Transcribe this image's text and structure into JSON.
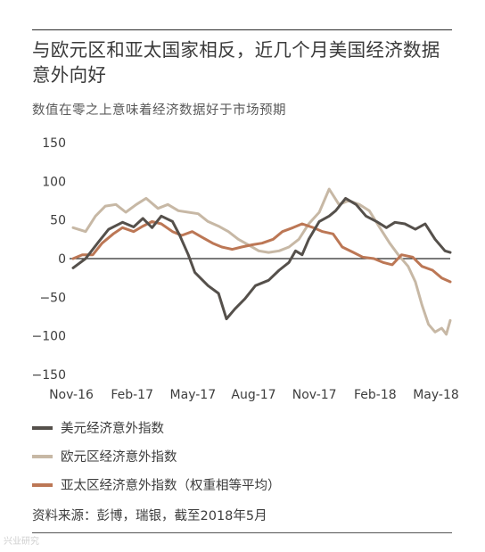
{
  "title": "与欧元区和亚太国家相反，近几个月美国经济数据意外向好",
  "subtitle": "数值在零之上意味着经济数据好于市场预期",
  "source": "资料来源：彭博，瑞银，截至2018年5月",
  "watermark": "兴业研究",
  "colors": {
    "us": "#55504b",
    "eu": "#c7b8a5",
    "apac": "#bc7755",
    "axis": "#2b2b2b"
  },
  "legend": [
    {
      "label": "美元经济意外指数",
      "color": "#55504b"
    },
    {
      "label": "欧元区经济意外指数",
      "color": "#c7b8a5"
    },
    {
      "label": "亚太区经济意外指数（权重相等平均）",
      "color": "#bc7755"
    }
  ],
  "chart_data": {
    "type": "line",
    "title": "",
    "xlabel": "",
    "ylabel": "",
    "x_ticks": [
      "Nov-16",
      "Feb-17",
      "May-17",
      "Aug-17",
      "Nov-17",
      "Feb-18",
      "May-18"
    ],
    "y_ticks": [
      150,
      100,
      50,
      0,
      -50,
      -100,
      -150
    ],
    "ylim": [
      -150,
      150
    ],
    "x_range": [
      "2016-11",
      "2018-05"
    ],
    "grid": false,
    "legend_position": "bottom",
    "series": [
      {
        "name": "美元经济意外指数",
        "points": [
          [
            "2016-11-01",
            -12
          ],
          [
            "2016-11-20",
            0
          ],
          [
            "2016-12-10",
            22
          ],
          [
            "2016-12-25",
            38
          ],
          [
            "2017-01-15",
            47
          ],
          [
            "2017-02-01",
            41
          ],
          [
            "2017-02-15",
            52
          ],
          [
            "2017-03-01",
            40
          ],
          [
            "2017-03-15",
            55
          ],
          [
            "2017-04-01",
            48
          ],
          [
            "2017-04-12",
            30
          ],
          [
            "2017-04-25",
            5
          ],
          [
            "2017-05-05",
            -18
          ],
          [
            "2017-05-25",
            -35
          ],
          [
            "2017-06-10",
            -45
          ],
          [
            "2017-06-22",
            -78
          ],
          [
            "2017-07-05",
            -65
          ],
          [
            "2017-07-20",
            -52
          ],
          [
            "2017-08-05",
            -35
          ],
          [
            "2017-08-25",
            -28
          ],
          [
            "2017-09-10",
            -15
          ],
          [
            "2017-09-25",
            -5
          ],
          [
            "2017-10-05",
            10
          ],
          [
            "2017-10-15",
            5
          ],
          [
            "2017-10-25",
            25
          ],
          [
            "2017-11-10",
            48
          ],
          [
            "2017-11-25",
            55
          ],
          [
            "2017-12-05",
            62
          ],
          [
            "2017-12-20",
            78
          ],
          [
            "2018-01-05",
            70
          ],
          [
            "2018-01-20",
            55
          ],
          [
            "2018-02-05",
            48
          ],
          [
            "2018-02-20",
            40
          ],
          [
            "2018-03-05",
            47
          ],
          [
            "2018-03-20",
            45
          ],
          [
            "2018-04-05",
            38
          ],
          [
            "2018-04-20",
            45
          ],
          [
            "2018-05-05",
            25
          ],
          [
            "2018-05-20",
            10
          ],
          [
            "2018-05-28",
            8
          ]
        ]
      },
      {
        "name": "欧元区经济意外指数",
        "points": [
          [
            "2016-11-01",
            40
          ],
          [
            "2016-11-20",
            35
          ],
          [
            "2016-12-05",
            55
          ],
          [
            "2016-12-20",
            68
          ],
          [
            "2017-01-05",
            70
          ],
          [
            "2017-01-20",
            60
          ],
          [
            "2017-02-05",
            70
          ],
          [
            "2017-02-20",
            78
          ],
          [
            "2017-03-10",
            65
          ],
          [
            "2017-03-25",
            70
          ],
          [
            "2017-04-10",
            62
          ],
          [
            "2017-04-25",
            60
          ],
          [
            "2017-05-10",
            58
          ],
          [
            "2017-05-25",
            48
          ],
          [
            "2017-06-10",
            42
          ],
          [
            "2017-06-25",
            35
          ],
          [
            "2017-07-10",
            25
          ],
          [
            "2017-07-25",
            18
          ],
          [
            "2017-08-10",
            10
          ],
          [
            "2017-08-25",
            8
          ],
          [
            "2017-09-10",
            10
          ],
          [
            "2017-09-25",
            15
          ],
          [
            "2017-10-10",
            25
          ],
          [
            "2017-10-25",
            45
          ],
          [
            "2017-11-10",
            60
          ],
          [
            "2017-11-25",
            90
          ],
          [
            "2017-12-10",
            70
          ],
          [
            "2017-12-25",
            75
          ],
          [
            "2018-01-10",
            70
          ],
          [
            "2018-01-25",
            62
          ],
          [
            "2018-02-10",
            40
          ],
          [
            "2018-02-25",
            20
          ],
          [
            "2018-03-10",
            5
          ],
          [
            "2018-03-25",
            -10
          ],
          [
            "2018-04-05",
            -30
          ],
          [
            "2018-04-15",
            -60
          ],
          [
            "2018-04-25",
            -85
          ],
          [
            "2018-05-05",
            -95
          ],
          [
            "2018-05-15",
            -90
          ],
          [
            "2018-05-22",
            -98
          ],
          [
            "2018-05-28",
            -80
          ]
        ]
      },
      {
        "name": "亚太区经济意外指数（权重相等平均）",
        "points": [
          [
            "2016-11-01",
            0
          ],
          [
            "2016-11-15",
            5
          ],
          [
            "2016-12-01",
            5
          ],
          [
            "2016-12-15",
            20
          ],
          [
            "2017-01-01",
            32
          ],
          [
            "2017-01-15",
            40
          ],
          [
            "2017-02-01",
            35
          ],
          [
            "2017-02-15",
            42
          ],
          [
            "2017-03-01",
            48
          ],
          [
            "2017-03-15",
            45
          ],
          [
            "2017-04-01",
            35
          ],
          [
            "2017-04-15",
            30
          ],
          [
            "2017-05-01",
            35
          ],
          [
            "2017-05-15",
            28
          ],
          [
            "2017-06-01",
            20
          ],
          [
            "2017-06-15",
            15
          ],
          [
            "2017-07-01",
            12
          ],
          [
            "2017-07-15",
            15
          ],
          [
            "2017-08-01",
            18
          ],
          [
            "2017-08-15",
            20
          ],
          [
            "2017-09-01",
            25
          ],
          [
            "2017-09-15",
            35
          ],
          [
            "2017-10-01",
            40
          ],
          [
            "2017-10-15",
            45
          ],
          [
            "2017-11-01",
            40
          ],
          [
            "2017-11-15",
            35
          ],
          [
            "2017-12-01",
            32
          ],
          [
            "2017-12-15",
            15
          ],
          [
            "2018-01-01",
            8
          ],
          [
            "2018-01-15",
            2
          ],
          [
            "2018-02-01",
            0
          ],
          [
            "2018-02-15",
            -5
          ],
          [
            "2018-03-01",
            -8
          ],
          [
            "2018-03-15",
            5
          ],
          [
            "2018-04-01",
            2
          ],
          [
            "2018-04-15",
            -10
          ],
          [
            "2018-05-01",
            -15
          ],
          [
            "2018-05-15",
            -25
          ],
          [
            "2018-05-28",
            -30
          ]
        ]
      }
    ]
  }
}
